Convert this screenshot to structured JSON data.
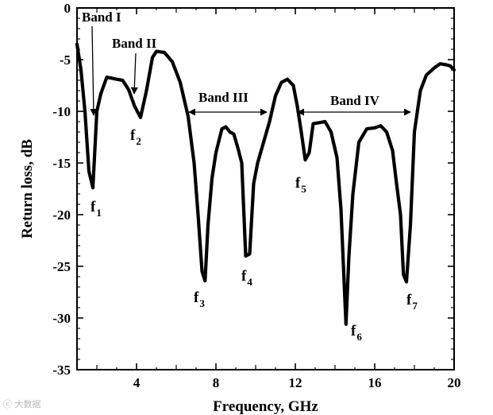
{
  "chart_data": {
    "type": "line",
    "xlabel": "Frequency, GHz",
    "ylabel": "Return loss, dB",
    "xlim": [
      1,
      20
    ],
    "ylim": [
      -35,
      0
    ],
    "x_ticks": [
      4,
      8,
      12,
      16,
      20
    ],
    "y_ticks": [
      0,
      -5,
      -10,
      -15,
      -20,
      -25,
      -30,
      -35
    ],
    "grid": false,
    "series": [
      {
        "color": "#000000",
        "points": [
          [
            1.0,
            -3.5
          ],
          [
            1.2,
            -6.0
          ],
          [
            1.4,
            -10.0
          ],
          [
            1.6,
            -15.8
          ],
          [
            1.8,
            -17.4
          ],
          [
            2.0,
            -10.0
          ],
          [
            2.2,
            -8.3
          ],
          [
            2.5,
            -6.7
          ],
          [
            3.0,
            -6.9
          ],
          [
            3.3,
            -7.0
          ],
          [
            3.6,
            -7.9
          ],
          [
            3.9,
            -9.5
          ],
          [
            4.2,
            -10.6
          ],
          [
            4.5,
            -8.0
          ],
          [
            4.8,
            -4.8
          ],
          [
            5.0,
            -4.2
          ],
          [
            5.4,
            -4.3
          ],
          [
            5.8,
            -5.2
          ],
          [
            6.2,
            -7.2
          ],
          [
            6.6,
            -10.5
          ],
          [
            6.9,
            -15.0
          ],
          [
            7.1,
            -20.0
          ],
          [
            7.3,
            -25.5
          ],
          [
            7.45,
            -26.4
          ],
          [
            7.6,
            -21.0
          ],
          [
            7.8,
            -16.5
          ],
          [
            8.0,
            -14.0
          ],
          [
            8.3,
            -11.7
          ],
          [
            8.5,
            -11.5
          ],
          [
            8.7,
            -12.0
          ],
          [
            8.9,
            -12.2
          ],
          [
            9.1,
            -13.5
          ],
          [
            9.3,
            -15.0
          ],
          [
            9.5,
            -24.0
          ],
          [
            9.7,
            -23.8
          ],
          [
            9.9,
            -17.0
          ],
          [
            10.1,
            -15.0
          ],
          [
            10.4,
            -13.0
          ],
          [
            10.7,
            -11.0
          ],
          [
            11.0,
            -8.5
          ],
          [
            11.3,
            -7.2
          ],
          [
            11.6,
            -6.9
          ],
          [
            11.9,
            -7.5
          ],
          [
            12.1,
            -9.5
          ],
          [
            12.3,
            -12.0
          ],
          [
            12.5,
            -14.7
          ],
          [
            12.7,
            -14.0
          ],
          [
            12.9,
            -11.2
          ],
          [
            13.2,
            -11.1
          ],
          [
            13.5,
            -11.0
          ],
          [
            13.8,
            -12.0
          ],
          [
            14.1,
            -14.5
          ],
          [
            14.3,
            -19.5
          ],
          [
            14.55,
            -30.6
          ],
          [
            14.7,
            -24.0
          ],
          [
            14.9,
            -18.0
          ],
          [
            15.2,
            -13.0
          ],
          [
            15.6,
            -11.7
          ],
          [
            16.0,
            -11.6
          ],
          [
            16.3,
            -11.4
          ],
          [
            16.6,
            -12.0
          ],
          [
            16.9,
            -13.8
          ],
          [
            17.1,
            -17.0
          ],
          [
            17.3,
            -20.0
          ],
          [
            17.45,
            -25.8
          ],
          [
            17.6,
            -26.5
          ],
          [
            17.8,
            -21.0
          ],
          [
            18.0,
            -12.0
          ],
          [
            18.3,
            -8.0
          ],
          [
            18.6,
            -6.5
          ],
          [
            19.0,
            -5.8
          ],
          [
            19.3,
            -5.4
          ],
          [
            19.6,
            -5.5
          ],
          [
            19.8,
            -5.6
          ],
          [
            20.0,
            -6.0
          ]
        ]
      }
    ],
    "annotations": {
      "bands": [
        {
          "label": "Band I"
        },
        {
          "label": "Band II"
        },
        {
          "label": "Band III"
        },
        {
          "label": "Band IV"
        }
      ],
      "frequency_markers": [
        {
          "label": "f",
          "subscript": "1"
        },
        {
          "label": "f",
          "subscript": "2"
        },
        {
          "label": "f",
          "subscript": "3"
        },
        {
          "label": "f",
          "subscript": "4"
        },
        {
          "label": "f",
          "subscript": "5"
        },
        {
          "label": "f",
          "subscript": "6"
        },
        {
          "label": "f",
          "subscript": "7"
        }
      ]
    }
  }
}
